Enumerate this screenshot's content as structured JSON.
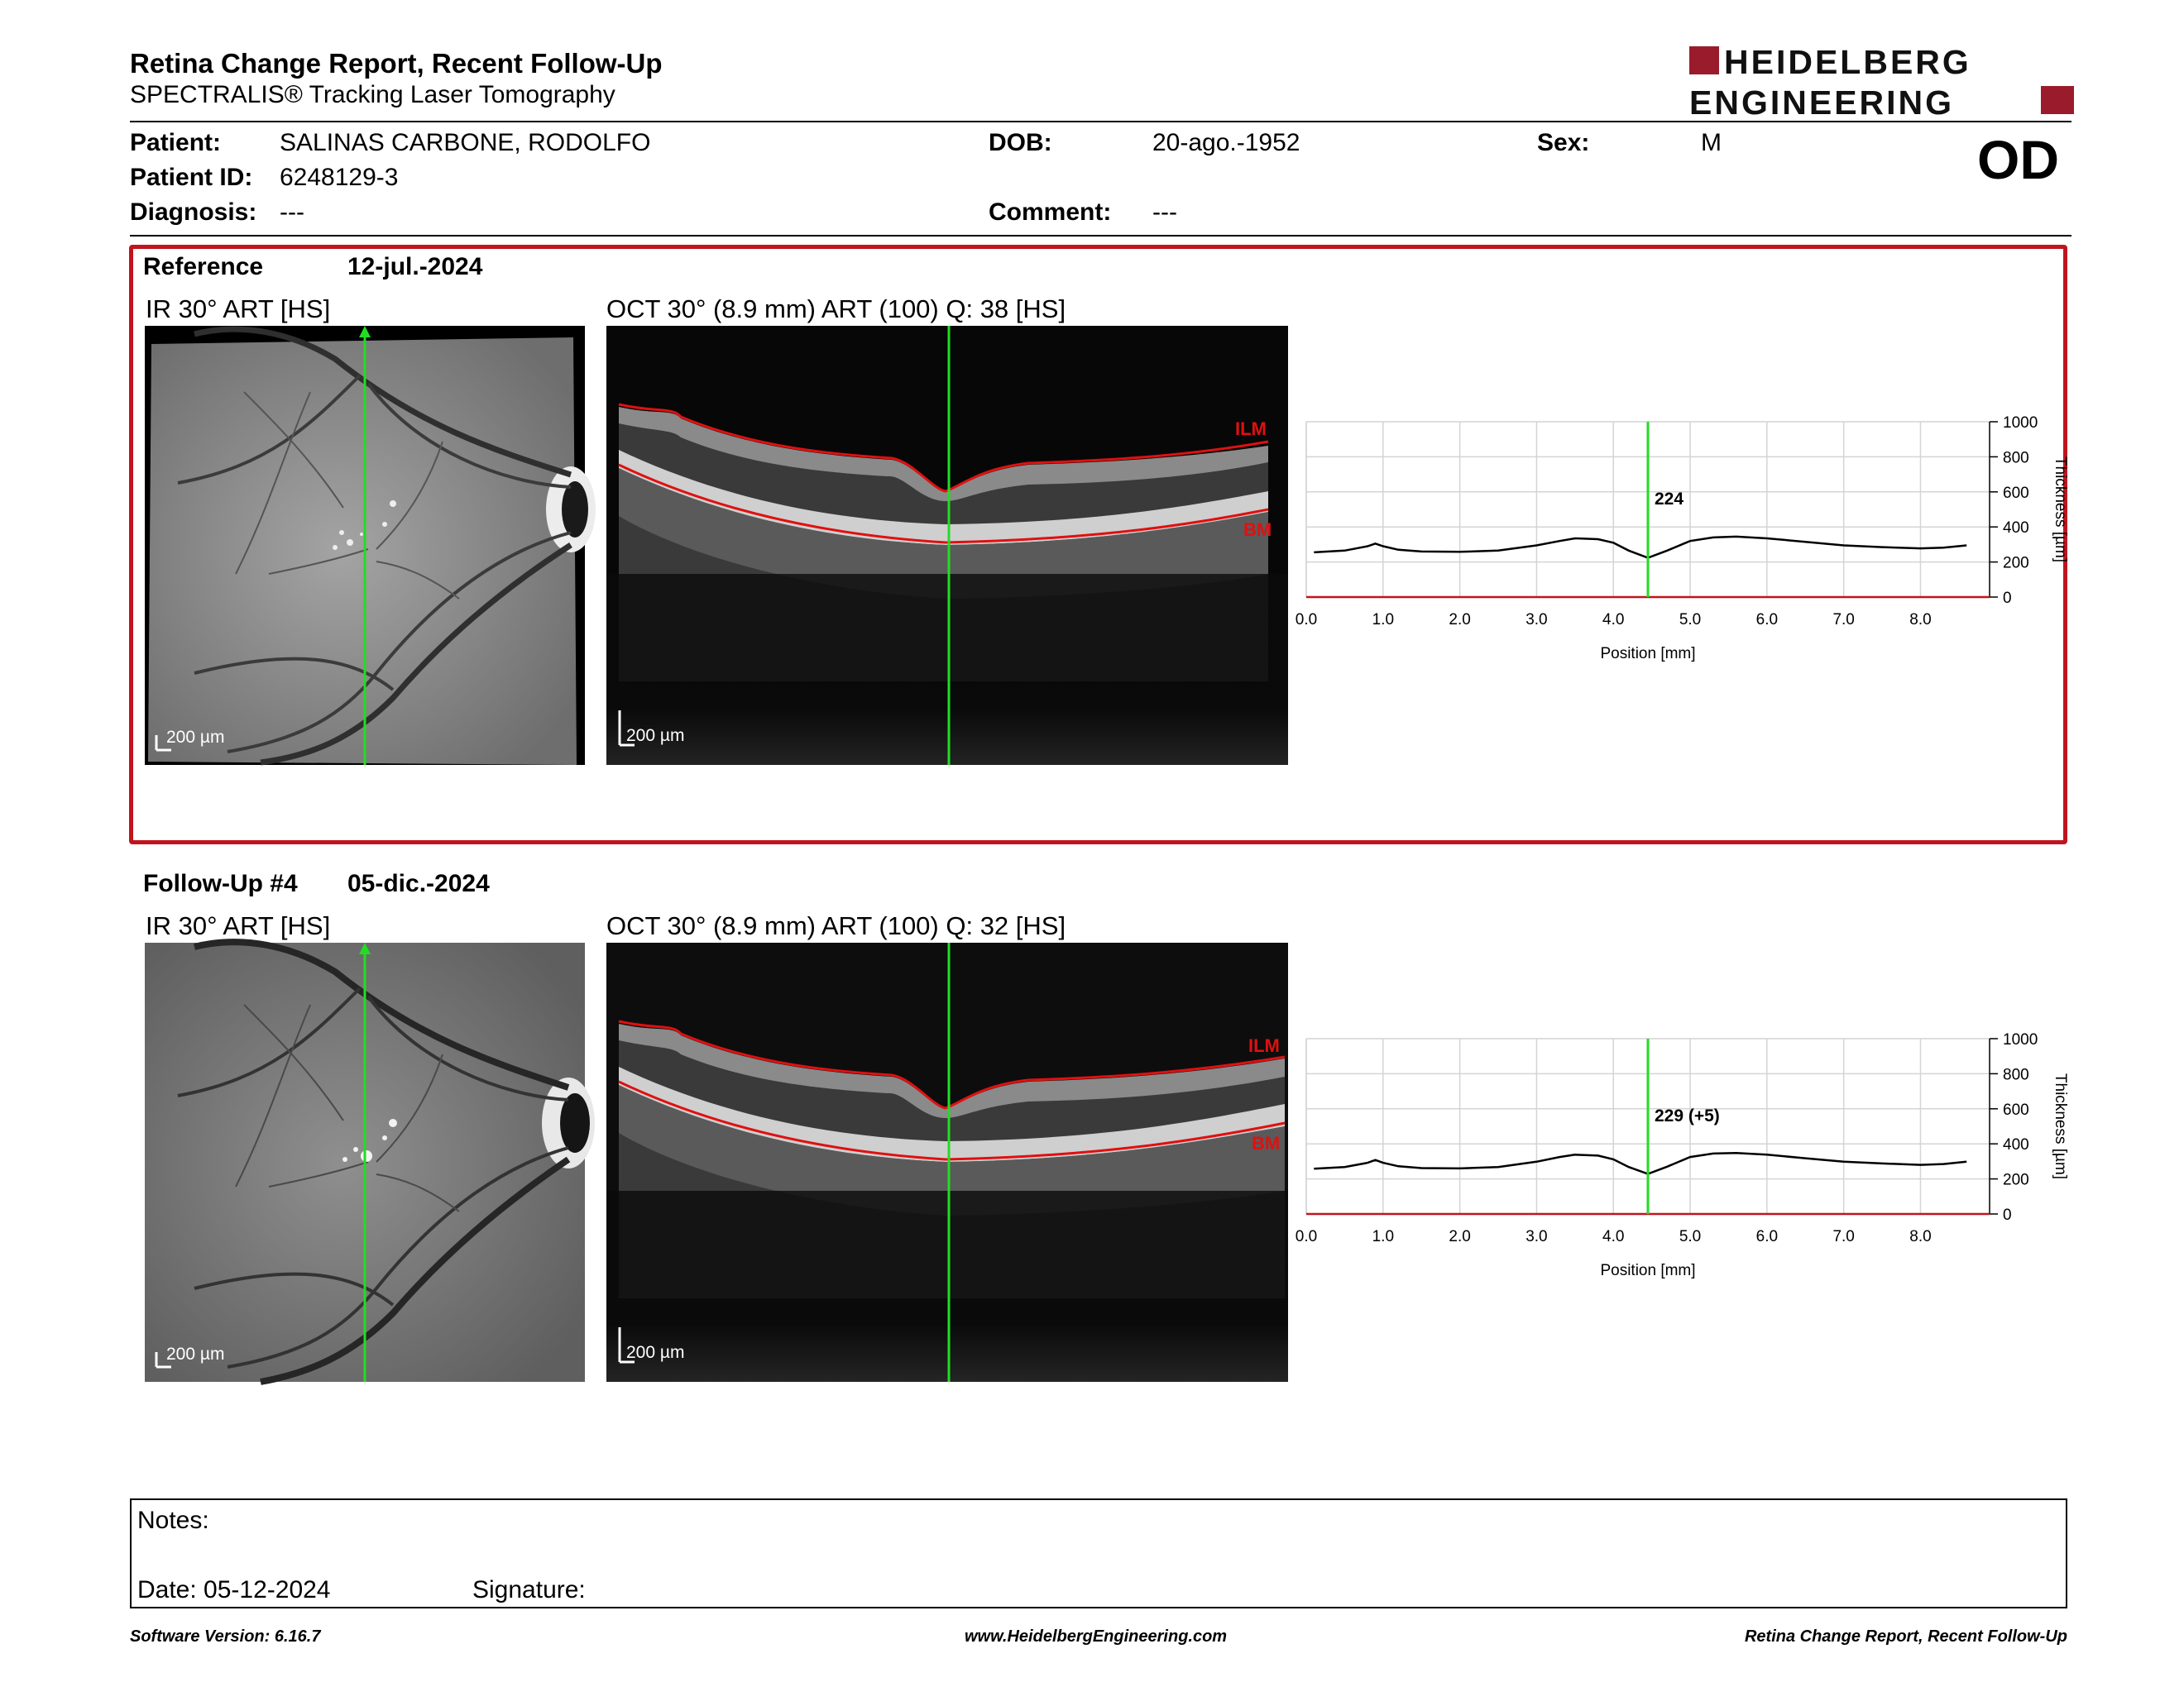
{
  "header": {
    "title": "Retina Change Report, Recent Follow-Up",
    "subtitle": "SPECTRALIS® Tracking Laser Tomography",
    "logo_line1": "HEIDELBERG",
    "logo_line2": "ENGINEERING",
    "eye": "OD"
  },
  "patient": {
    "name_label": "Patient:",
    "name": "SALINAS CARBONE, RODOLFO",
    "id_label": "Patient ID:",
    "id": "6248129-3",
    "diagnosis_label": "Diagnosis:",
    "diagnosis": "---",
    "dob_label": "DOB:",
    "dob": "20-ago.-1952",
    "comment_label": "Comment:",
    "comment": "---",
    "sex_label": "Sex:",
    "sex": "M"
  },
  "reference": {
    "label": "Reference",
    "date": "12-jul.-2024",
    "ir_label": "IR 30° ART [HS]",
    "oct_label": "OCT 30° (8.9 mm) ART (100) Q: 38 [HS]",
    "scale_bar": "200 µm",
    "ilm_label": "ILM",
    "bm_label": "BM"
  },
  "followup": {
    "label": "Follow-Up #4",
    "date": "05-dic.-2024",
    "ir_label": "IR 30° ART [HS]",
    "oct_label": "OCT 30° (8.9 mm) ART (100) Q: 32 [HS]",
    "scale_bar": "200 µm",
    "ilm_label": "ILM",
    "bm_label": "BM"
  },
  "chart_data": [
    {
      "type": "line",
      "xlabel": "Position [mm]",
      "ylabel": "Thickness [µm]",
      "xlim": [
        0,
        8.9
      ],
      "ylim": [
        0,
        1000
      ],
      "x_ticks": [
        "0.0",
        "1.0",
        "2.0",
        "3.0",
        "4.0",
        "5.0",
        "6.0",
        "7.0",
        "8.0"
      ],
      "y_ticks": [
        "0",
        "200",
        "400",
        "600",
        "800",
        "1000"
      ],
      "grid": true,
      "cursor_x": 4.45,
      "cursor_label": "224",
      "x": [
        0.1,
        0.5,
        0.8,
        0.9,
        1.0,
        1.2,
        1.5,
        2.0,
        2.5,
        3.0,
        3.3,
        3.5,
        3.8,
        4.0,
        4.2,
        4.45,
        4.7,
        5.0,
        5.3,
        5.6,
        6.0,
        6.5,
        7.0,
        7.5,
        8.0,
        8.3,
        8.6
      ],
      "y": [
        255,
        265,
        290,
        305,
        290,
        270,
        260,
        258,
        265,
        295,
        320,
        335,
        330,
        310,
        265,
        224,
        265,
        320,
        340,
        345,
        335,
        315,
        295,
        285,
        278,
        282,
        295
      ]
    },
    {
      "type": "line",
      "xlabel": "Position [mm]",
      "ylabel": "Thickness [µm]",
      "xlim": [
        0,
        8.9
      ],
      "ylim": [
        0,
        1000
      ],
      "x_ticks": [
        "0.0",
        "1.0",
        "2.0",
        "3.0",
        "4.0",
        "5.0",
        "6.0",
        "7.0",
        "8.0"
      ],
      "y_ticks": [
        "0",
        "200",
        "400",
        "600",
        "800",
        "1000"
      ],
      "grid": true,
      "cursor_x": 4.45,
      "cursor_label": "229 (+5)",
      "x": [
        0.1,
        0.5,
        0.8,
        0.9,
        1.0,
        1.2,
        1.5,
        2.0,
        2.5,
        3.0,
        3.3,
        3.5,
        3.8,
        4.0,
        4.2,
        4.45,
        4.7,
        5.0,
        5.3,
        5.6,
        6.0,
        6.5,
        7.0,
        7.5,
        8.0,
        8.3,
        8.6
      ],
      "y": [
        258,
        268,
        292,
        308,
        292,
        272,
        262,
        260,
        268,
        298,
        325,
        338,
        333,
        312,
        268,
        229,
        270,
        325,
        345,
        348,
        338,
        318,
        298,
        288,
        280,
        285,
        298
      ]
    }
  ],
  "notes": {
    "notes_label": "Notes:",
    "date_label": "Date: 05-12-2024",
    "signature_label": "Signature:"
  },
  "footer": {
    "left": "Software Version: 6.16.7",
    "center": "www.HeidelbergEngineering.com",
    "right": "Retina Change Report, Recent Follow-Up"
  },
  "colors": {
    "accent_red": "#c0141e",
    "logo_red": "#9a1b2c",
    "cursor_green": "#22dd22",
    "layer_red": "#e01010"
  }
}
